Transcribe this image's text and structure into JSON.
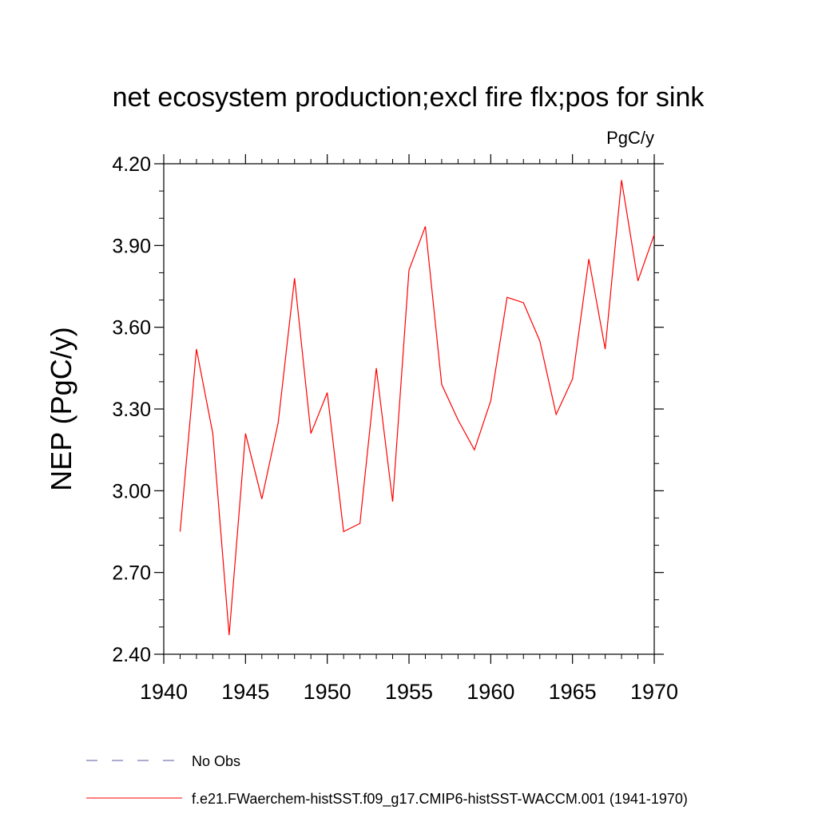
{
  "chart_data": {
    "type": "line",
    "title": "net ecosystem production;excl fire flx;pos for sink",
    "units": "PgC/y",
    "ylabel": "NEP  (PgC/y)",
    "xlabel": "",
    "xlim": [
      1940,
      1970
    ],
    "ylim": [
      2.4,
      4.2
    ],
    "x_ticks": [
      1940,
      1945,
      1950,
      1955,
      1960,
      1965,
      1970
    ],
    "x_tick_labels": [
      "1940",
      "1945",
      "1950",
      "1955",
      "1960",
      "1965",
      "1970"
    ],
    "y_ticks": [
      2.4,
      2.7,
      3.0,
      3.3,
      3.6,
      3.9,
      4.2
    ],
    "y_tick_labels": [
      "2.40",
      "2.70",
      "3.00",
      "3.30",
      "3.60",
      "3.90",
      "4.20"
    ],
    "grid": false,
    "legend_position": "bottom",
    "series": [
      {
        "name": "f.e21.FWaerchem-histSST.f09_g17.CMIP6-histSST-WACCM.001 (1941-1970)",
        "color": "#ff0000",
        "dash": "solid",
        "x": [
          1941,
          1942,
          1943,
          1944,
          1945,
          1946,
          1947,
          1948,
          1949,
          1950,
          1951,
          1952,
          1953,
          1954,
          1955,
          1956,
          1957,
          1958,
          1959,
          1960,
          1961,
          1962,
          1963,
          1964,
          1965,
          1966,
          1967,
          1968,
          1969,
          1970
        ],
        "y": [
          2.85,
          3.52,
          3.21,
          2.47,
          3.21,
          2.97,
          3.25,
          3.78,
          3.21,
          3.36,
          2.85,
          2.88,
          3.45,
          2.96,
          3.81,
          3.97,
          3.39,
          3.26,
          3.15,
          3.33,
          3.71,
          3.69,
          3.55,
          3.28,
          3.41,
          3.85,
          3.52,
          4.14,
          3.77,
          3.94
        ]
      }
    ],
    "legend": [
      {
        "label": "No Obs",
        "color": "#5a5aa0",
        "dash": "dashed"
      },
      {
        "label": "f.e21.FWaerchem-histSST.f09_g17.CMIP6-histSST-WACCM.001 (1941-1970)",
        "color": "#ff0000",
        "dash": "solid"
      }
    ]
  }
}
